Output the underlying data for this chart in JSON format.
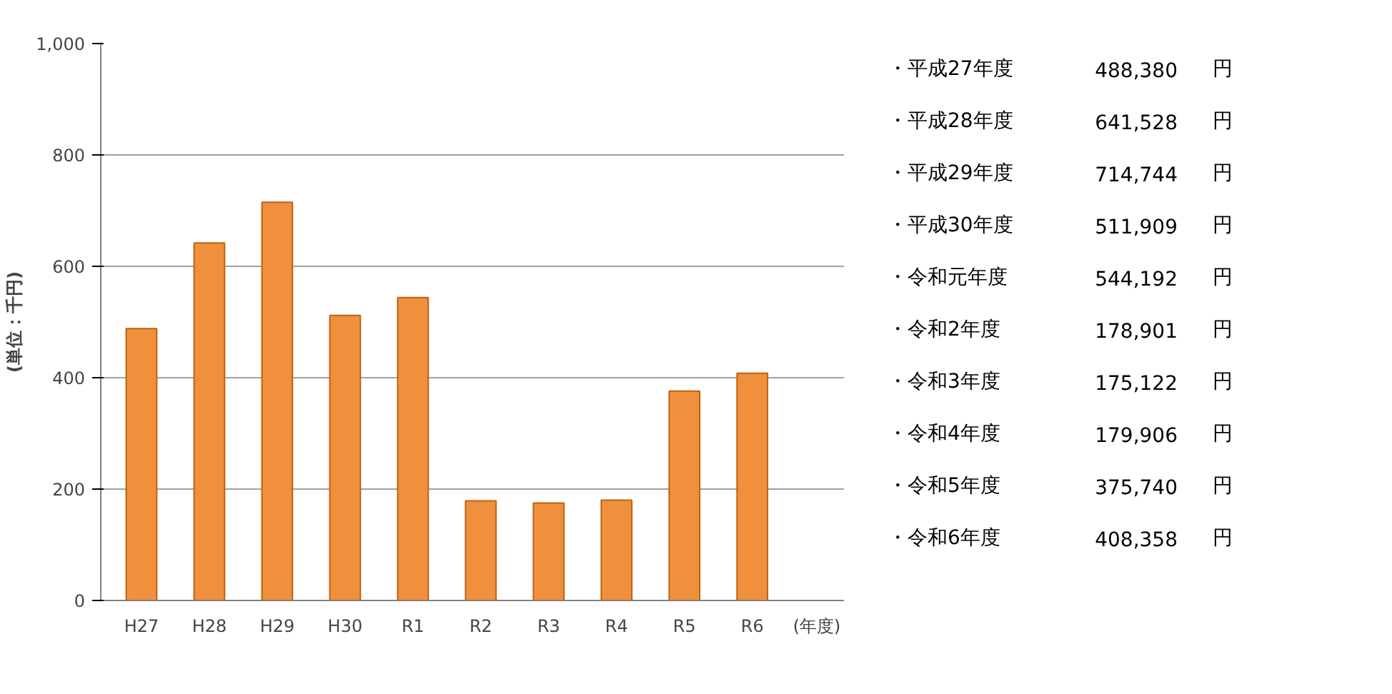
{
  "chart_data": [
    {
      "type": "bar",
      "ylabel": "(単位：千円)",
      "xlabel": "(年度)",
      "categories": [
        "H27",
        "H28",
        "H29",
        "H30",
        "R1",
        "R2",
        "R3",
        "R4",
        "R5",
        "R6"
      ],
      "values": [
        488,
        642,
        715,
        512,
        544,
        179,
        175,
        180,
        376,
        408
      ],
      "color": "#f0903c",
      "ylim": [
        0,
        1000
      ],
      "yticks": [
        0,
        200,
        400,
        600,
        800,
        {
          "value": 1000,
          "label": "1,000"
        }
      ],
      "grid": "y"
    },
    {
      "type": "other",
      "annotations": [
        "・平成27年度",
        "488,380",
        "円",
        "・平成28年度",
        "641,528",
        "円",
        "・平成29年度",
        "714,744",
        "円",
        "・平成30年度",
        "511,909",
        "円",
        "・令和元年度",
        "544,192",
        "円",
        "・令和2年度",
        "178,901",
        "円",
        "・令和3年度",
        "175,122",
        "円",
        "・令和4年度",
        "179,906",
        "円",
        "・令和5年度",
        "375,740",
        "円",
        "・令和6年度",
        "408,358",
        "円"
      ]
    }
  ]
}
